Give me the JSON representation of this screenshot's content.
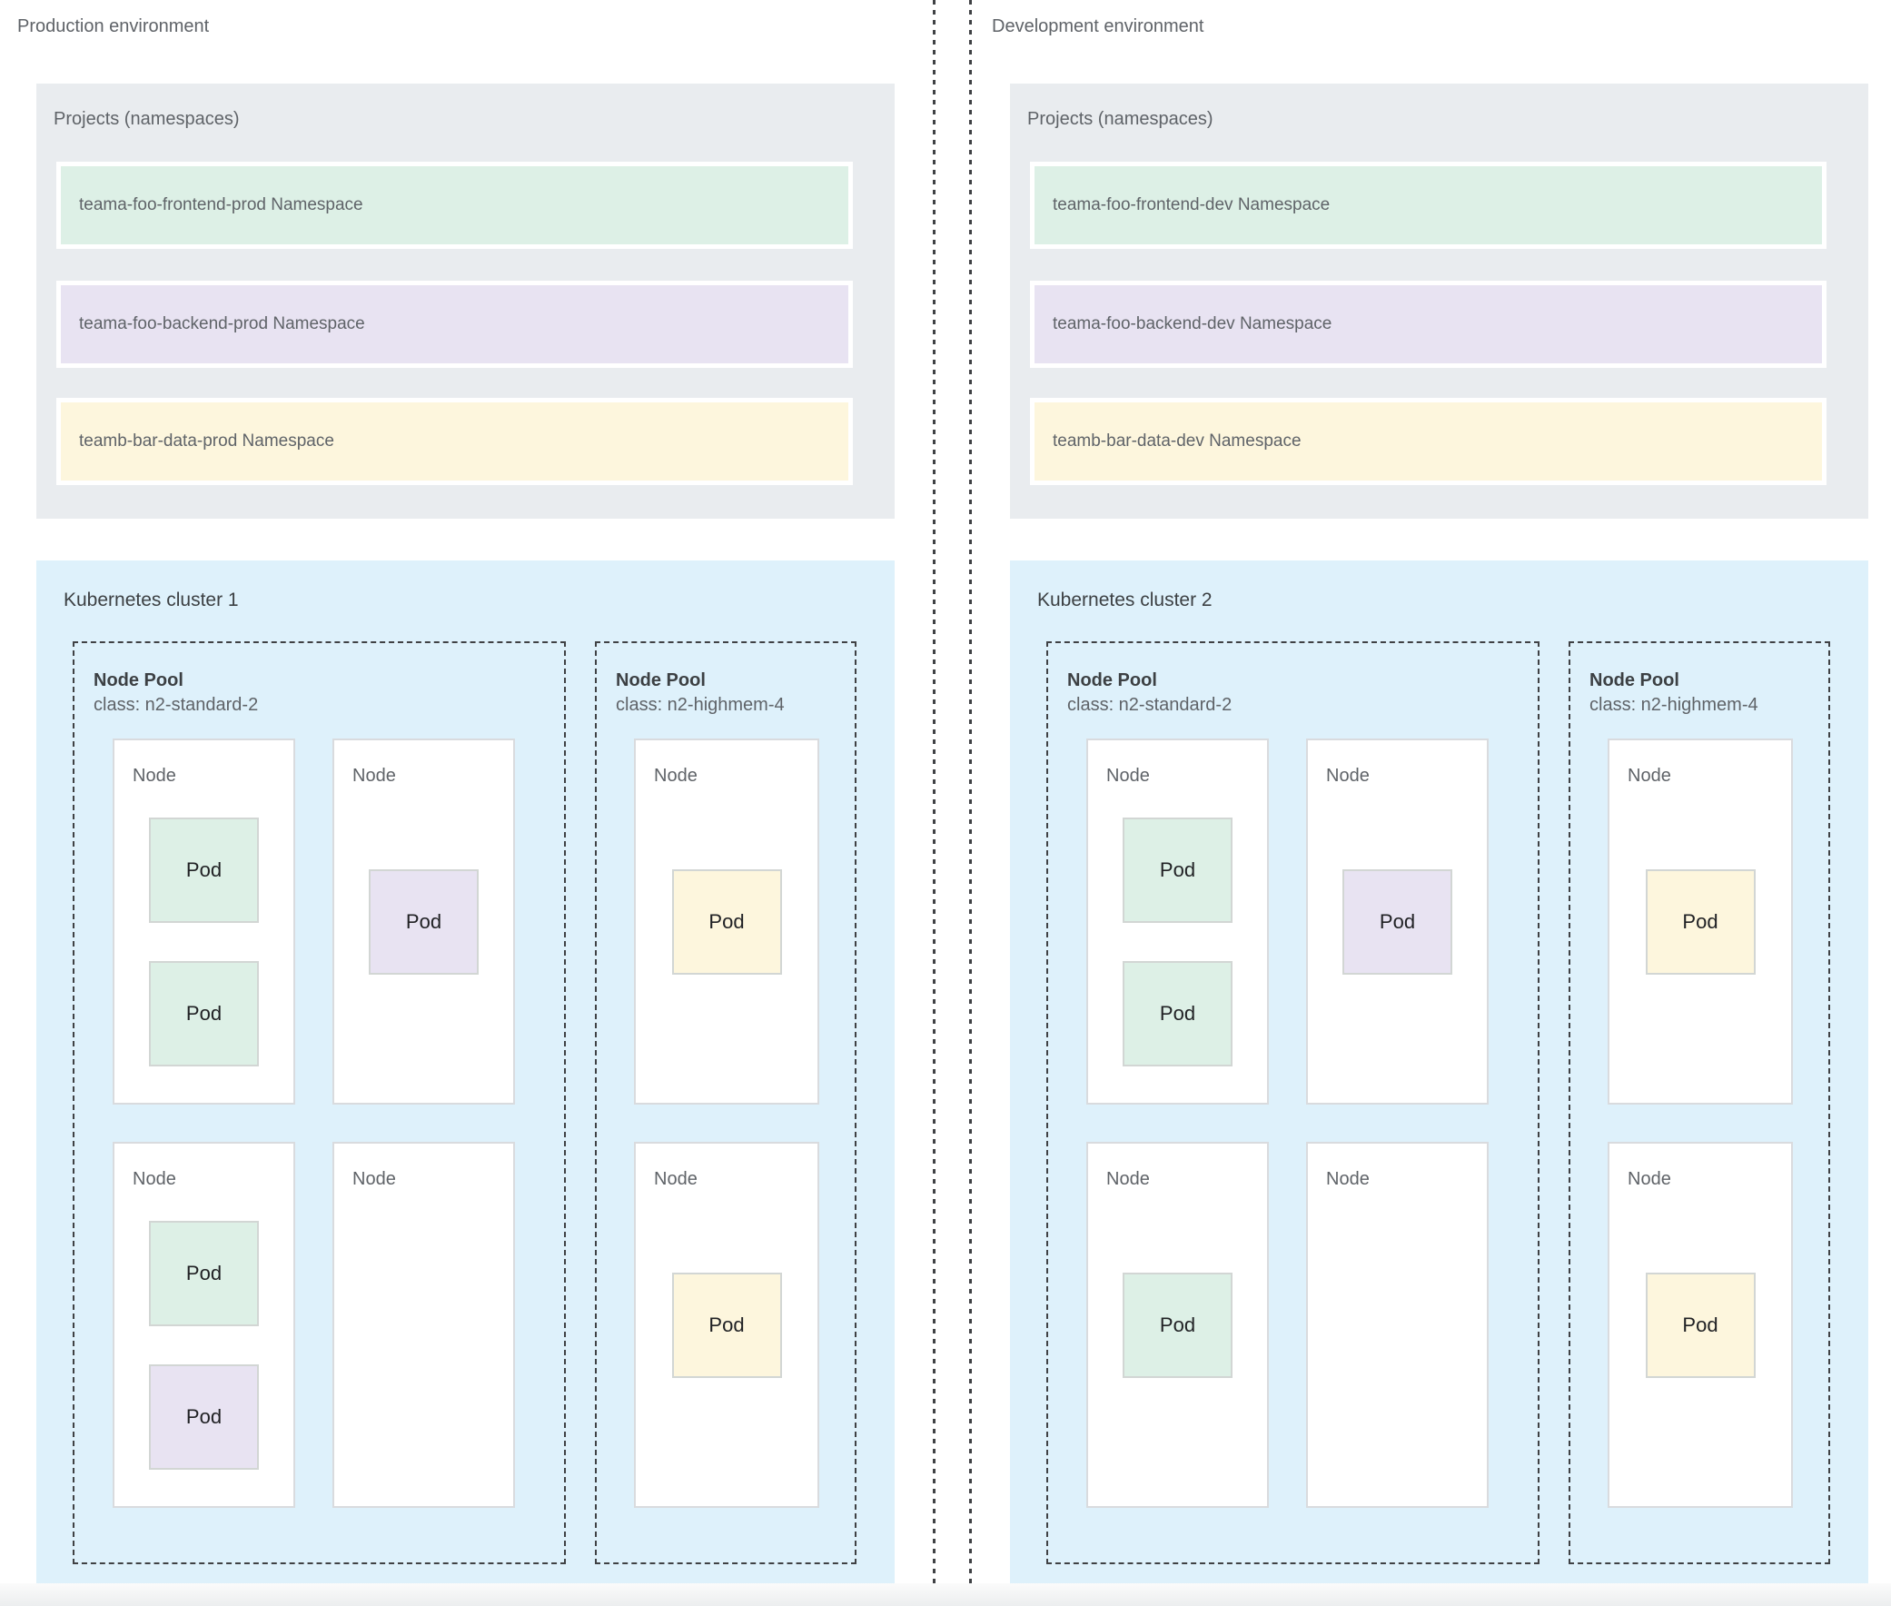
{
  "colors": {
    "cluster-blue": "#def1fb",
    "panel-gray": "#e9ecef",
    "ns-green": "#ddf0e6",
    "ns-purple": "#e8e3f2",
    "ns-yellow": "#fdf6dd",
    "text-gray": "#5f6368",
    "text-dark": "#3c4043",
    "pod-text": "#202124",
    "dash": "#3f4144",
    "node-border": "#d9dbde",
    "pod-border": "#d2d6d4"
  },
  "environments": [
    {
      "title": "Production environment",
      "projects": {
        "label": "Projects (namespaces)",
        "namespaces": [
          {
            "label": "teama-foo-frontend-prod Namespace",
            "color": "#ddf0e6"
          },
          {
            "label": "teama-foo-backend-prod Namespace",
            "color": "#e8e3f2"
          },
          {
            "label": "teamb-bar-data-prod Namespace",
            "color": "#fdf6dd"
          }
        ]
      },
      "cluster": {
        "title": "Kubernetes cluster 1",
        "pools": [
          {
            "name": "Node Pool",
            "class": "class: n2-standard-2",
            "nodes": [
              {
                "label": "Node",
                "pods": [
                  {
                    "label": "Pod",
                    "color": "green"
                  },
                  {
                    "label": "Pod",
                    "color": "green"
                  }
                ]
              },
              {
                "label": "Node",
                "pods": [
                  {
                    "label": "Pod",
                    "color": "purple"
                  }
                ]
              },
              {
                "label": "Node",
                "pods": [
                  {
                    "label": "Pod",
                    "color": "green"
                  },
                  {
                    "label": "Pod",
                    "color": "purple"
                  }
                ]
              },
              {
                "label": "Node",
                "pods": []
              }
            ]
          },
          {
            "name": "Node Pool",
            "class": "class: n2-highmem-4",
            "nodes": [
              {
                "label": "Node",
                "pods": [
                  {
                    "label": "Pod",
                    "color": "yellow"
                  }
                ]
              },
              {
                "label": "Node",
                "pods": [
                  {
                    "label": "Pod",
                    "color": "yellow"
                  }
                ]
              }
            ]
          }
        ]
      }
    },
    {
      "title": "Development environment",
      "projects": {
        "label": "Projects (namespaces)",
        "namespaces": [
          {
            "label": "teama-foo-frontend-dev Namespace",
            "color": "#ddf0e6"
          },
          {
            "label": "teama-foo-backend-dev Namespace",
            "color": "#e8e3f2"
          },
          {
            "label": "teamb-bar-data-dev Namespace",
            "color": "#fdf6dd"
          }
        ]
      },
      "cluster": {
        "title": "Kubernetes cluster 2",
        "pools": [
          {
            "name": "Node Pool",
            "class": "class: n2-standard-2",
            "nodes": [
              {
                "label": "Node",
                "pods": [
                  {
                    "label": "Pod",
                    "color": "green"
                  },
                  {
                    "label": "Pod",
                    "color": "green"
                  }
                ]
              },
              {
                "label": "Node",
                "pods": [
                  {
                    "label": "Pod",
                    "color": "purple"
                  }
                ]
              },
              {
                "label": "Node",
                "pods": [
                  {
                    "label": "Pod",
                    "color": "green"
                  }
                ]
              },
              {
                "label": "Node",
                "pods": []
              }
            ]
          },
          {
            "name": "Node Pool",
            "class": "class: n2-highmem-4",
            "nodes": [
              {
                "label": "Node",
                "pods": [
                  {
                    "label": "Pod",
                    "color": "yellow"
                  }
                ]
              },
              {
                "label": "Node",
                "pods": [
                  {
                    "label": "Pod",
                    "color": "yellow"
                  }
                ]
              }
            ]
          }
        ]
      }
    }
  ]
}
